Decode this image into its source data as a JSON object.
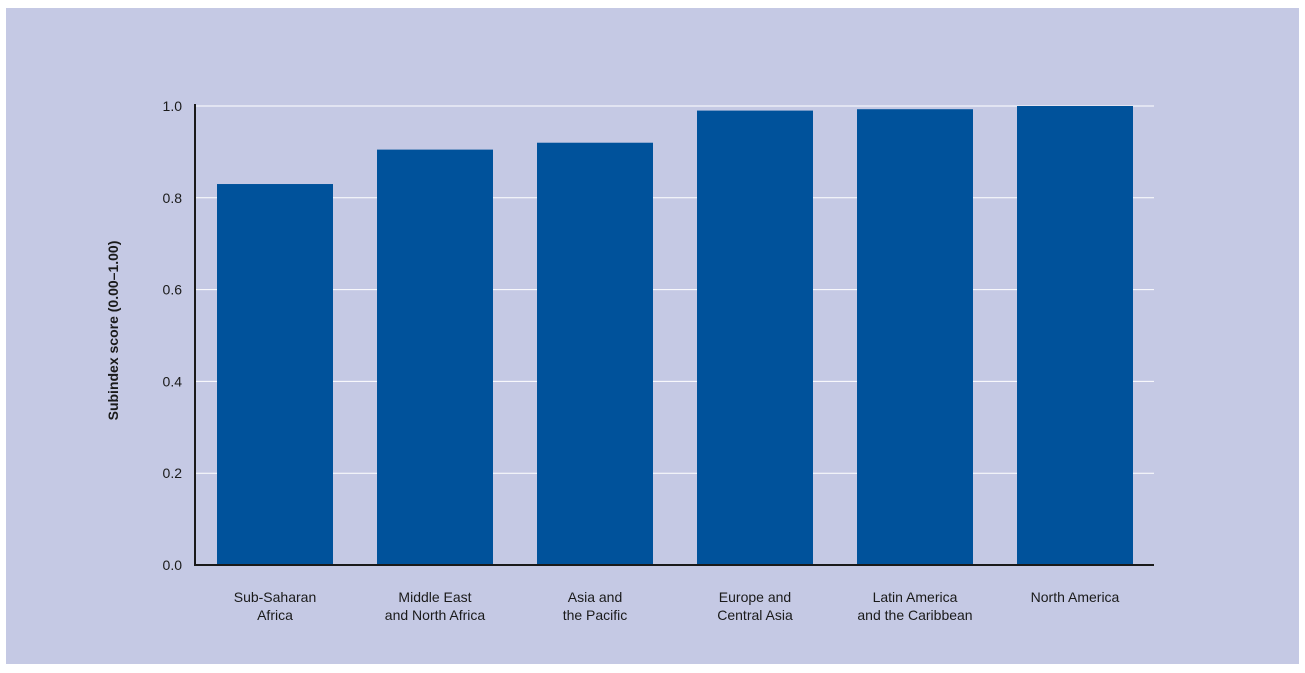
{
  "chart_data": {
    "type": "bar",
    "title": "",
    "xlabel": "",
    "ylabel": "Subindex score (0.00–1.00)",
    "ylim": [
      0,
      1.0
    ],
    "yticks": [
      "0.0",
      "0.2",
      "0.4",
      "0.6",
      "0.8",
      "1.0"
    ],
    "grid": true,
    "categories": [
      [
        "Sub-Saharan",
        "Africa"
      ],
      [
        "Middle East",
        "and North Africa"
      ],
      [
        "Asia and",
        "the Pacific"
      ],
      [
        "Europe and",
        "Central Asia"
      ],
      [
        "Latin America",
        "and the Caribbean"
      ],
      [
        "North America"
      ]
    ],
    "values": [
      0.83,
      0.905,
      0.92,
      0.99,
      0.993,
      1.0
    ],
    "colors": {
      "bar": "#00529b",
      "background": "#c5c9e4",
      "grid": "#ffffff",
      "axis": "#1a1a1a"
    }
  }
}
